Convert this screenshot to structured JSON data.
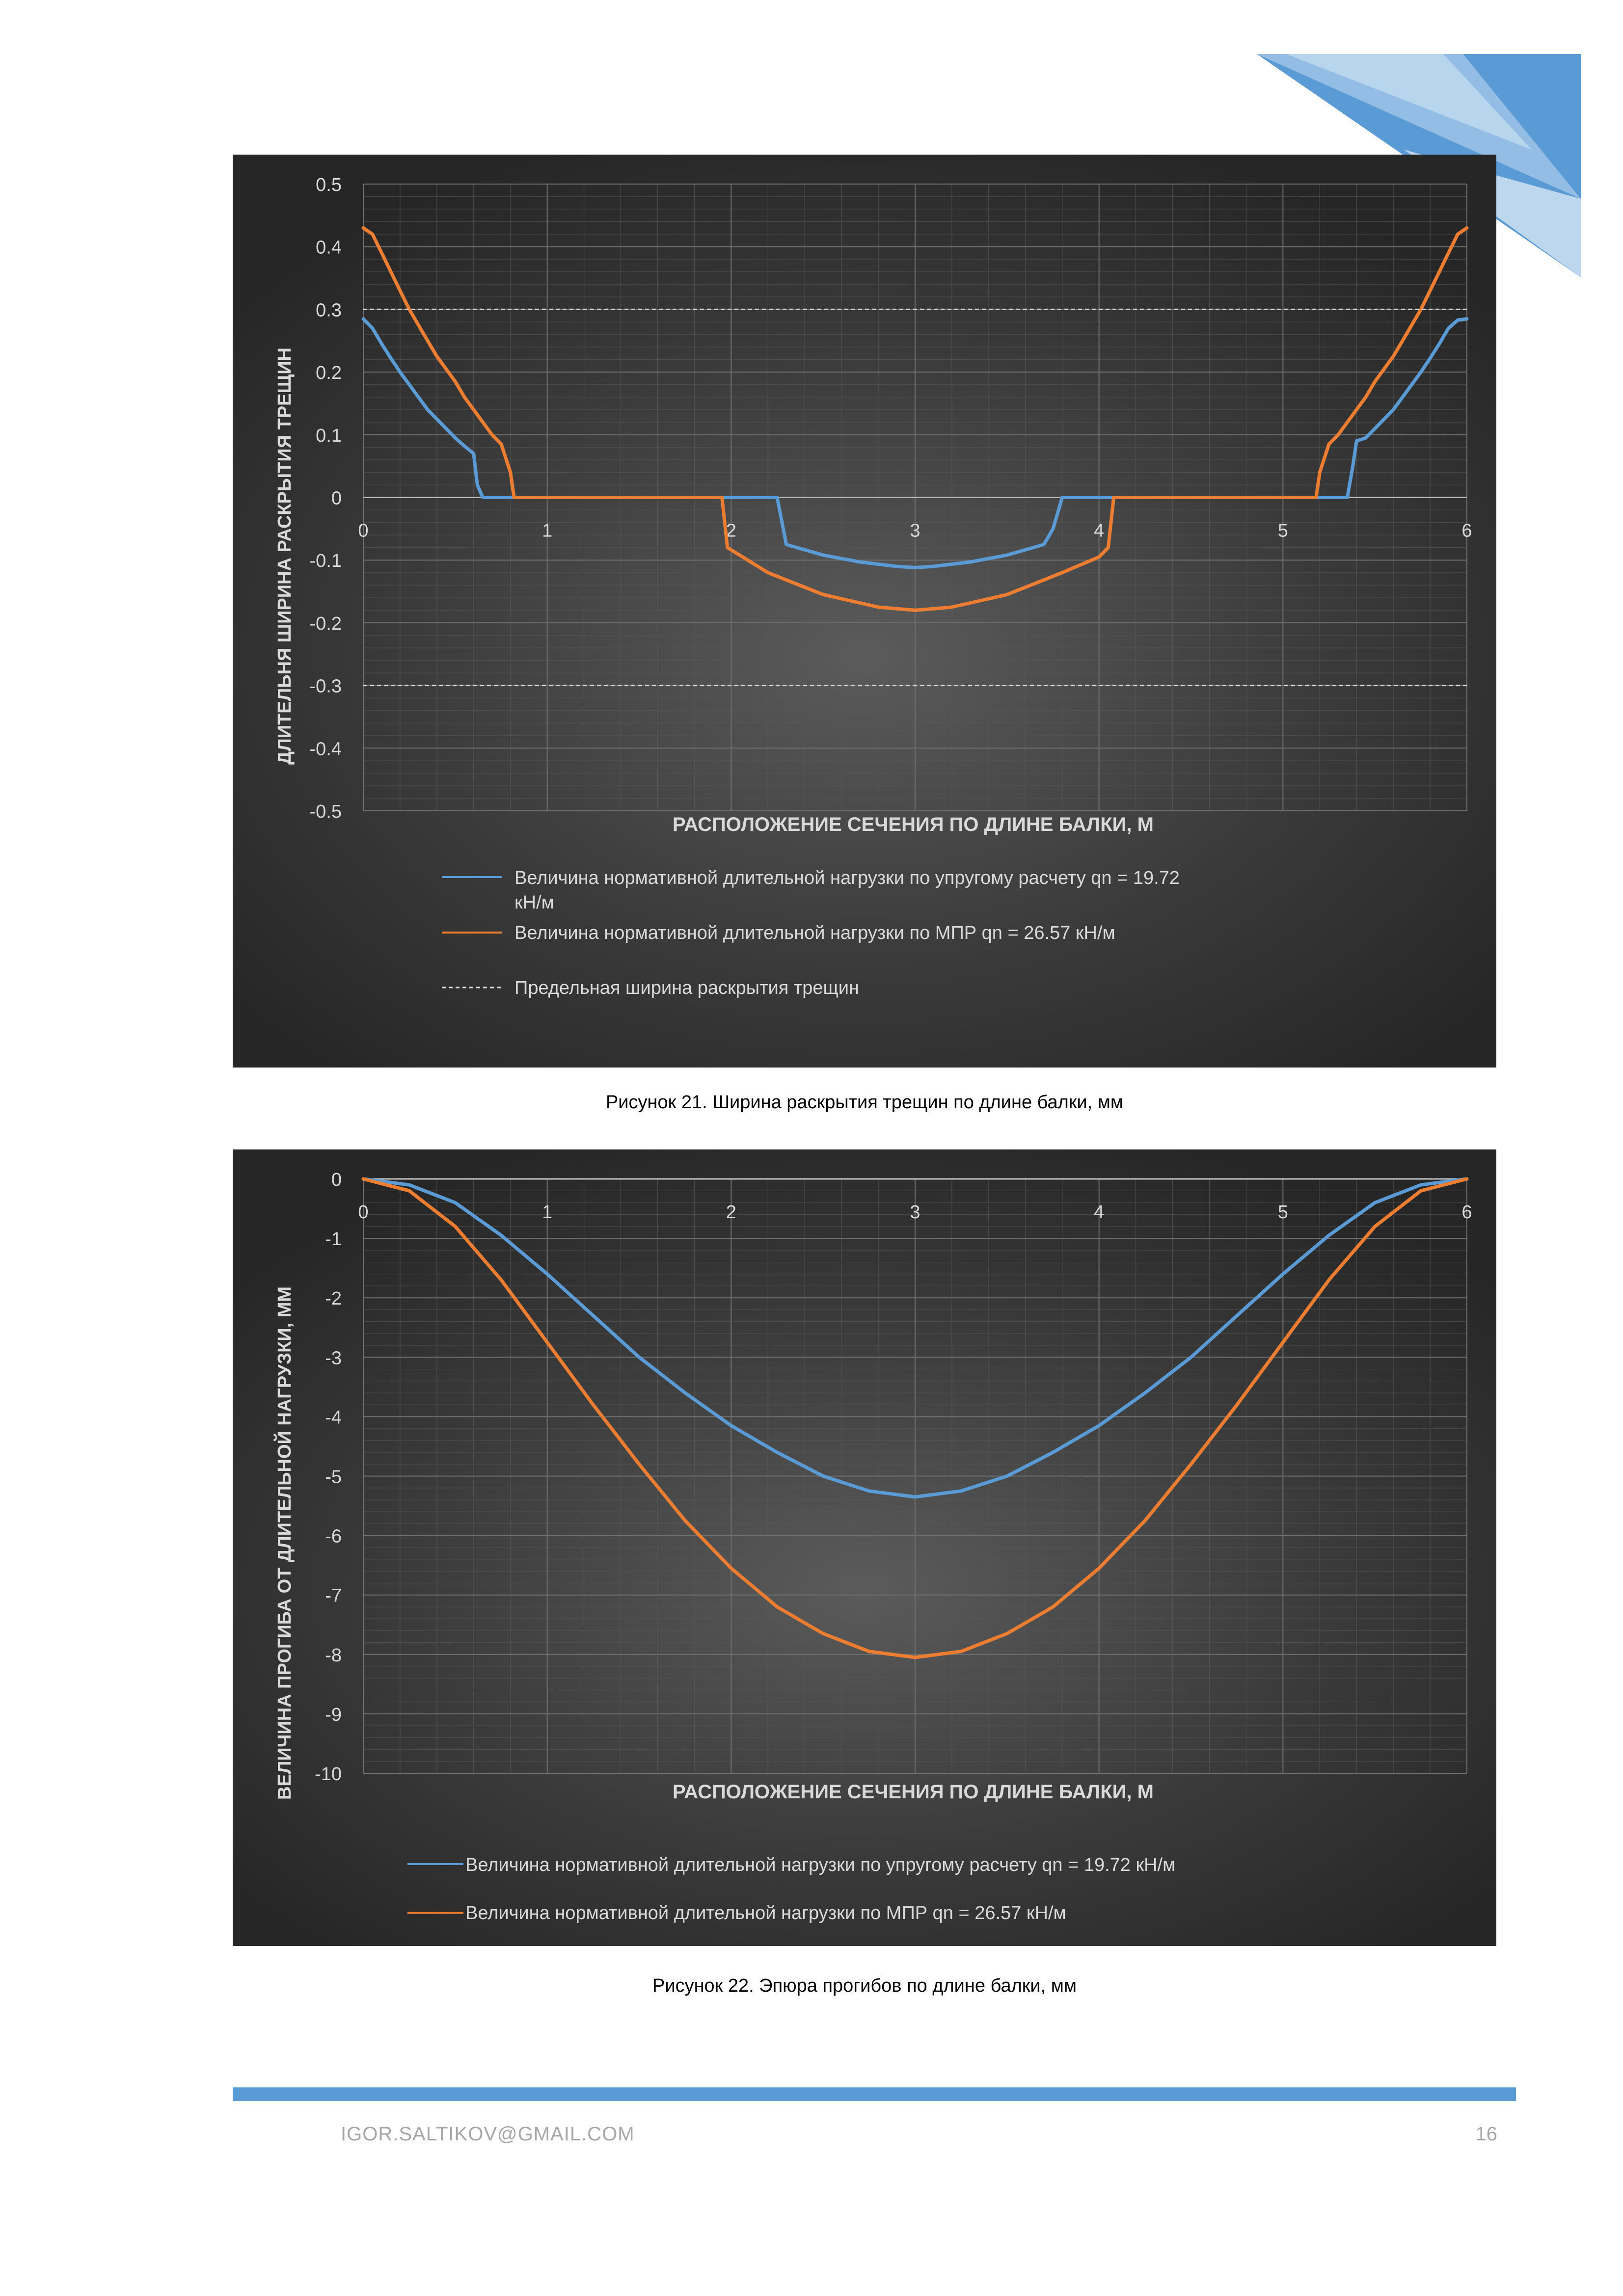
{
  "chart_data": [
    {
      "type": "line",
      "title": "",
      "xlabel": "РАСПОЛОЖЕНИЕ СЕЧЕНИЯ ПО ДЛИНЕ БАЛКИ, М",
      "ylabel": "ДЛИТЕЛЬНЯ ШИРИНА РАСКРЫТИЯ ТРЕЩИН",
      "xlim": [
        0,
        6
      ],
      "ylim": [
        -0.5,
        0.5
      ],
      "xticks": [
        "0",
        "1",
        "2",
        "3",
        "4",
        "5",
        "6"
      ],
      "yticks": [
        "0.5",
        "0.4",
        "0.3",
        "0.2",
        "0.1",
        "0",
        "-0.1",
        "-0.2",
        "-0.3",
        "-0.4",
        "-0.5"
      ],
      "grid": true,
      "legend_position": "bottom",
      "series": [
        {
          "name": "Величина нормативной длительной нагрузки по упругому расчету qn = 19.72 кН/м",
          "color": "#5b9bd5",
          "x": [
            0,
            0.05,
            0.1,
            0.15,
            0.2,
            0.25,
            0.3,
            0.35,
            0.4,
            0.45,
            0.5,
            0.55,
            0.6,
            0.62,
            0.65,
            2.25,
            2.3,
            2.5,
            2.7,
            2.9,
            3.0,
            3.1,
            3.3,
            3.5,
            3.7,
            3.75,
            3.8,
            5.35,
            5.38,
            5.4,
            5.45,
            5.5,
            5.55,
            5.6,
            5.65,
            5.7,
            5.75,
            5.8,
            5.85,
            5.9,
            5.95,
            6.0
          ],
          "y": [
            0.285,
            0.27,
            0.245,
            0.222,
            0.2,
            0.18,
            0.16,
            0.14,
            0.125,
            0.11,
            0.095,
            0.082,
            0.07,
            0.02,
            0,
            0,
            -0.075,
            -0.092,
            -0.103,
            -0.11,
            -0.112,
            -0.11,
            -0.103,
            -0.092,
            -0.075,
            -0.05,
            0,
            0,
            0.05,
            0.09,
            0.095,
            0.11,
            0.125,
            0.14,
            0.16,
            0.18,
            0.2,
            0.222,
            0.245,
            0.27,
            0.283,
            0.285
          ]
        },
        {
          "name": "Величина нормативной длительной нагрузки по МПР qn = 26.57 кН/м",
          "color": "#ed7d31",
          "x": [
            0,
            0.05,
            0.1,
            0.15,
            0.2,
            0.25,
            0.3,
            0.35,
            0.4,
            0.45,
            0.5,
            0.55,
            0.6,
            0.65,
            0.7,
            0.75,
            0.8,
            0.82,
            1.95,
            1.98,
            2.2,
            2.5,
            2.8,
            3.0,
            3.2,
            3.5,
            3.8,
            4.0,
            4.05,
            4.08,
            5.18,
            5.2,
            5.25,
            5.3,
            5.35,
            5.4,
            5.45,
            5.5,
            5.55,
            5.6,
            5.65,
            5.7,
            5.75,
            5.8,
            5.85,
            5.9,
            5.95,
            6.0
          ],
          "y": [
            0.43,
            0.42,
            0.39,
            0.36,
            0.33,
            0.3,
            0.275,
            0.25,
            0.225,
            0.205,
            0.185,
            0.16,
            0.14,
            0.12,
            0.1,
            0.085,
            0.04,
            0,
            0,
            -0.08,
            -0.12,
            -0.155,
            -0.175,
            -0.18,
            -0.175,
            -0.155,
            -0.12,
            -0.095,
            -0.08,
            0,
            0,
            0.04,
            0.085,
            0.1,
            0.12,
            0.14,
            0.16,
            0.185,
            0.205,
            0.225,
            0.25,
            0.275,
            0.3,
            0.33,
            0.36,
            0.39,
            0.42,
            0.43
          ]
        },
        {
          "name": "Предельная ширина раскрытия трещин",
          "color": "#d9d9d9",
          "dashed": true,
          "x": [
            0,
            6
          ],
          "y": [
            0.3,
            0.3
          ],
          "mirror_y": -0.3
        }
      ]
    },
    {
      "type": "line",
      "title": "",
      "xlabel": "РАСПОЛОЖЕНИЕ СЕЧЕНИЯ ПО ДЛИНЕ БАЛКИ, М",
      "ylabel": "ВЕЛИЧИНА ПРОГИБА ОТ ДЛИТЕЛЬНОЙ НАГРУЗКИ, ММ",
      "xlim": [
        0,
        6
      ],
      "ylim": [
        -10,
        0
      ],
      "xticks": [
        "0",
        "1",
        "2",
        "3",
        "4",
        "5",
        "6"
      ],
      "yticks": [
        "0",
        "-1",
        "-2",
        "-3",
        "-4",
        "-5",
        "-6",
        "-7",
        "-8",
        "-9",
        "-10"
      ],
      "grid": true,
      "legend_position": "bottom",
      "series": [
        {
          "name": "Величина нормативной длительной нагрузки по упругому расчету qn = 19.72 кН/м",
          "color": "#5b9bd5",
          "x": [
            0,
            0.25,
            0.5,
            0.75,
            1.0,
            1.25,
            1.5,
            1.75,
            2.0,
            2.25,
            2.5,
            2.75,
            3.0,
            3.25,
            3.5,
            3.75,
            4.0,
            4.25,
            4.5,
            4.75,
            5.0,
            5.25,
            5.5,
            5.75,
            6.0
          ],
          "y": [
            0,
            -0.1,
            -0.4,
            -0.95,
            -1.6,
            -2.3,
            -3.0,
            -3.6,
            -4.15,
            -4.6,
            -5.0,
            -5.25,
            -5.35,
            -5.25,
            -5.0,
            -4.6,
            -4.15,
            -3.6,
            -3.0,
            -2.3,
            -1.6,
            -0.95,
            -0.4,
            -0.1,
            0
          ]
        },
        {
          "name": "Величина нормативной длительной нагрузки по МПР qn = 26.57 кН/м",
          "color": "#ed7d31",
          "x": [
            0,
            0.25,
            0.5,
            0.75,
            1.0,
            1.25,
            1.5,
            1.75,
            2.0,
            2.25,
            2.5,
            2.75,
            3.0,
            3.25,
            3.5,
            3.75,
            4.0,
            4.25,
            4.5,
            4.75,
            5.0,
            5.25,
            5.5,
            5.75,
            6.0
          ],
          "y": [
            0,
            -0.2,
            -0.8,
            -1.7,
            -2.75,
            -3.8,
            -4.8,
            -5.75,
            -6.55,
            -7.2,
            -7.65,
            -7.95,
            -8.05,
            -7.95,
            -7.65,
            -7.2,
            -6.55,
            -5.75,
            -4.8,
            -3.8,
            -2.75,
            -1.7,
            -0.8,
            -0.2,
            0
          ]
        }
      ]
    }
  ],
  "captions": {
    "figure21": "Рисунок 21. Ширина раскрытия трещин по длине балки, мм",
    "figure22": "Рисунок 22. Эпюра прогибов по длине балки, мм"
  },
  "footer": {
    "email": "IGOR.SALTIKOV@GMAIL.COM",
    "page": "16"
  }
}
